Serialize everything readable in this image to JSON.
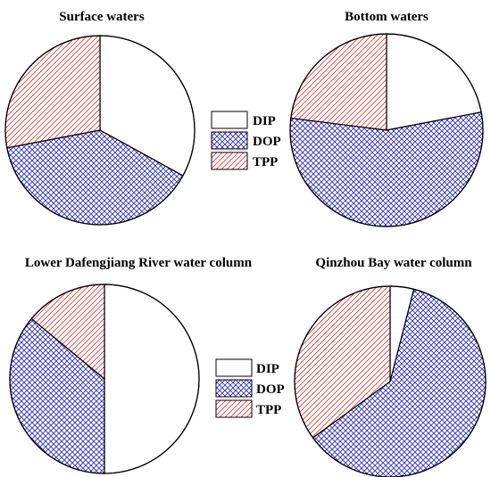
{
  "colors": {
    "DIP": "#ffffff",
    "DOP": "#3030c8",
    "TPP": "#e04040",
    "outline": "#000000"
  },
  "legend": {
    "items": [
      "DIP",
      "DOP",
      "TPP"
    ],
    "patterns": {
      "DIP": "none",
      "DOP": "crosshatch",
      "TPP": "diagonal"
    }
  },
  "chart_data": [
    {
      "type": "pie",
      "title": "Surface waters",
      "labels": [
        "DIP",
        "DOP",
        "TPP"
      ],
      "values": [
        33,
        39,
        28
      ],
      "start_angle_deg": 0,
      "direction": "clockwise",
      "legend_placement": "right"
    },
    {
      "type": "pie",
      "title": "Bottom waters",
      "labels": [
        "DIP",
        "DOP",
        "TPP"
      ],
      "values": [
        22,
        55,
        23
      ],
      "start_angle_deg": 0,
      "direction": "clockwise",
      "legend_placement": "left"
    },
    {
      "type": "pie",
      "title": "Lower Dafengjiang River water column",
      "labels": [
        "DIP",
        "DOP",
        "TPP"
      ],
      "values": [
        50,
        36,
        14
      ],
      "start_angle_deg": 0,
      "direction": "clockwise",
      "legend_placement": "right"
    },
    {
      "type": "pie",
      "title": "Qinzhou Bay water column",
      "labels": [
        "DIP",
        "DOP",
        "TPP"
      ],
      "values": [
        4,
        61,
        35
      ],
      "start_angle_deg": 0,
      "direction": "clockwise",
      "legend_placement": "left"
    }
  ]
}
